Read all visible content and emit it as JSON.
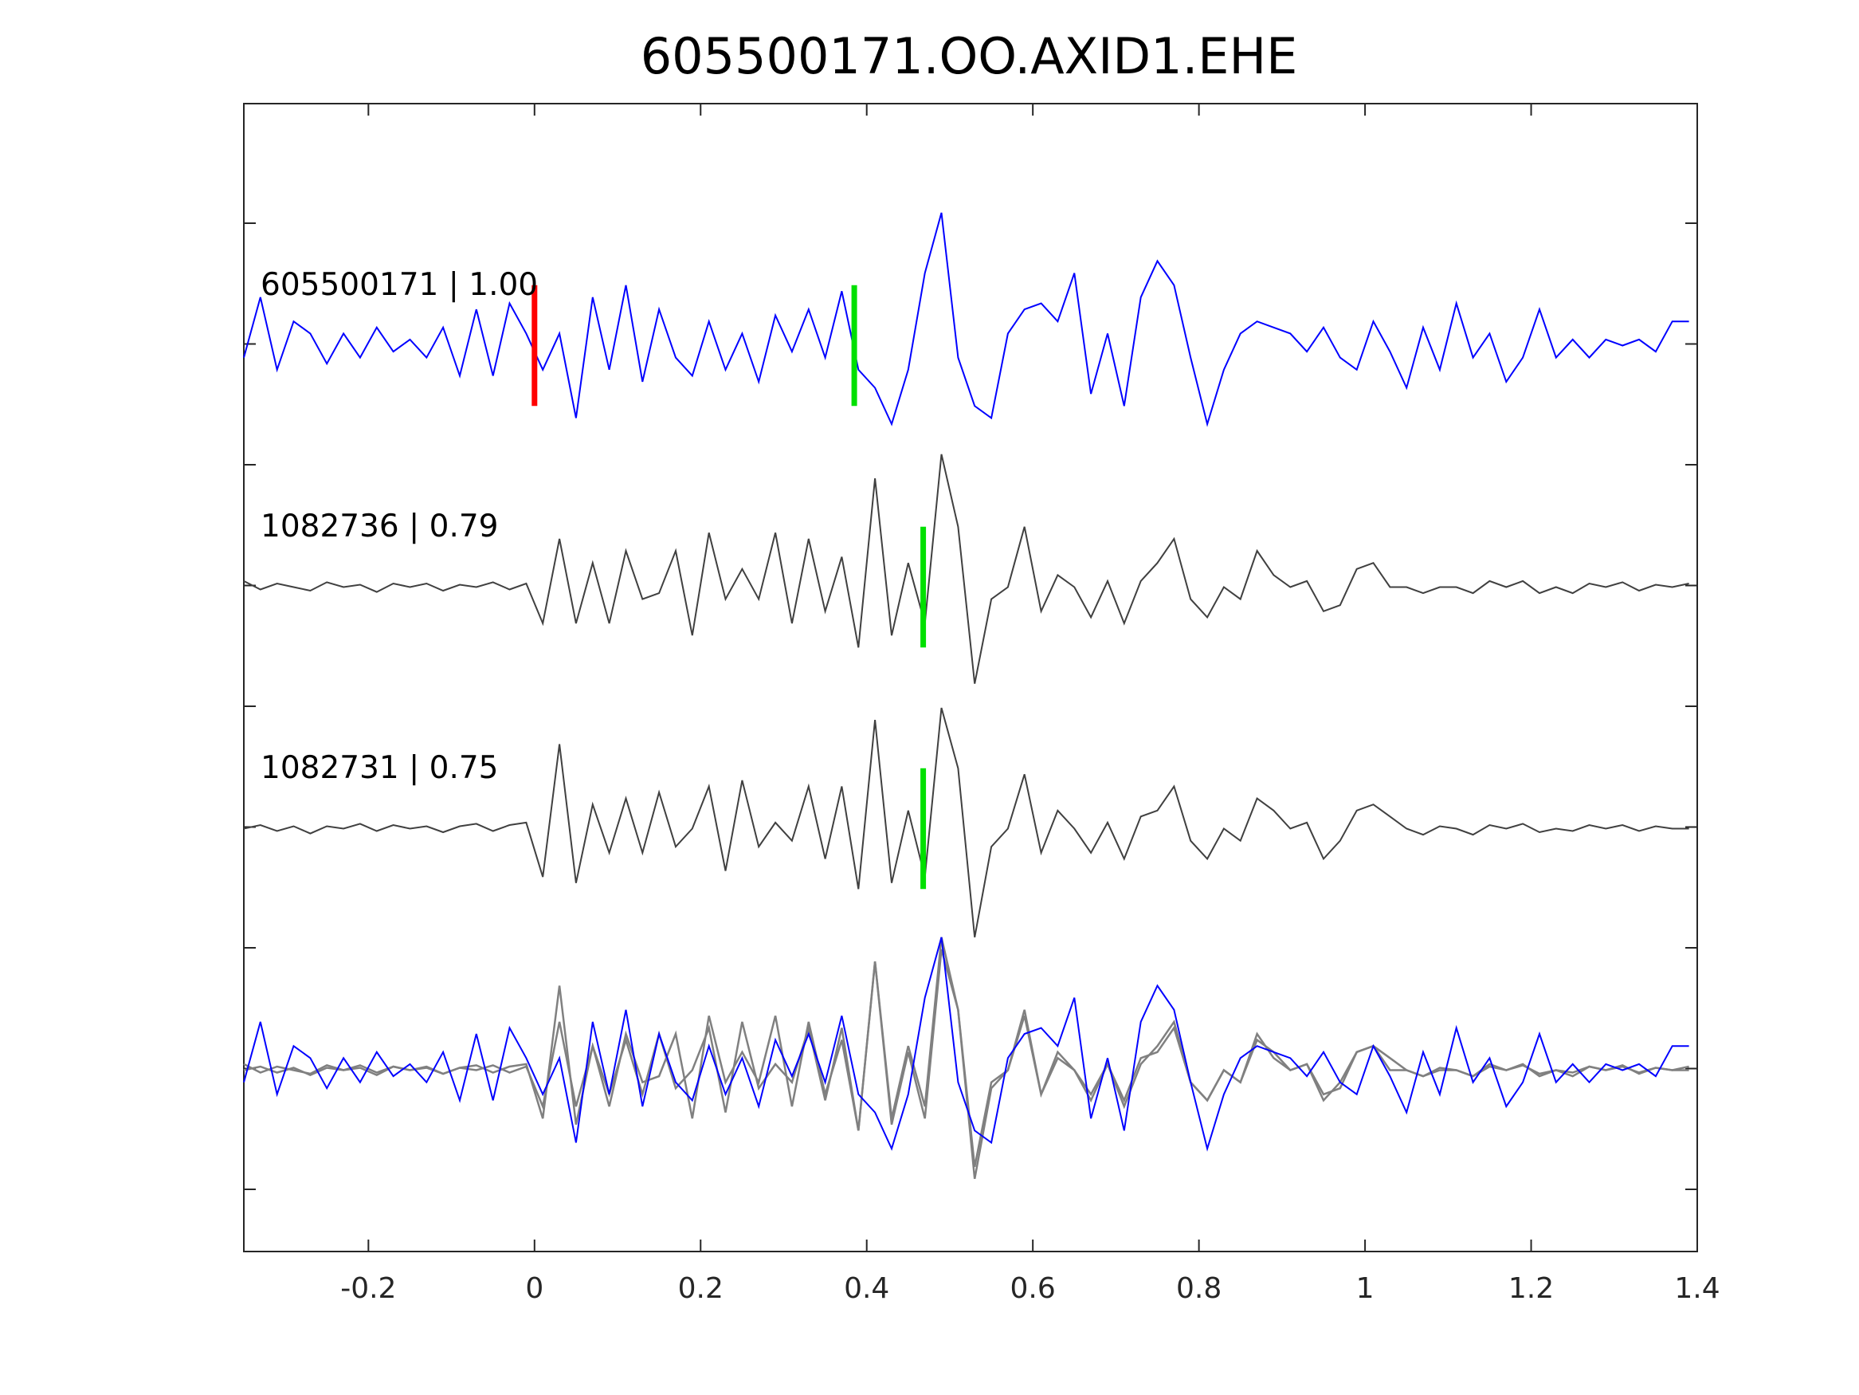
{
  "chart_data": {
    "type": "line",
    "title": "605500171.OO.AXID1.EHE",
    "xlabel": "",
    "ylabel": "",
    "xlim": [
      -0.35,
      1.4
    ],
    "x_ticks": [
      "-0.2",
      "0",
      "0.2",
      "0.4",
      "0.6",
      "0.8",
      "1",
      "1.2",
      "1.4"
    ],
    "x_tick_values": [
      -0.2,
      0,
      0.2,
      0.4,
      0.6,
      0.8,
      1.0,
      1.2,
      1.4
    ],
    "y_tick_count": 9,
    "grid": false,
    "sample_start": -0.35,
    "sample_step": 0.02,
    "series": [
      {
        "name": "605500171",
        "label": "605500171 | 1.00",
        "color": "#0000ff",
        "offset_slot": 0,
        "values": [
          -0.1,
          0.4,
          -0.2,
          0.2,
          0.1,
          -0.15,
          0.1,
          -0.1,
          0.15,
          -0.05,
          0.05,
          -0.1,
          0.15,
          -0.25,
          0.3,
          -0.25,
          0.35,
          0.1,
          -0.2,
          0.1,
          -0.6,
          0.4,
          -0.2,
          0.5,
          -0.3,
          0.3,
          -0.1,
          -0.25,
          0.2,
          -0.2,
          0.1,
          -0.3,
          0.25,
          -0.05,
          0.3,
          -0.1,
          0.45,
          -0.2,
          -0.35,
          -0.65,
          -0.2,
          0.6,
          1.1,
          -0.1,
          -0.5,
          -0.6,
          0.1,
          0.3,
          0.35,
          0.2,
          0.6,
          -0.4,
          0.1,
          -0.5,
          0.4,
          0.7,
          0.5,
          -0.1,
          -0.65,
          -0.2,
          0.1,
          0.2,
          0.15,
          0.1,
          -0.05,
          0.15,
          -0.1,
          -0.2,
          0.2,
          -0.05,
          -0.35,
          0.15,
          -0.2,
          0.35,
          -0.1,
          0.1,
          -0.3,
          -0.1,
          0.3,
          -0.1,
          0.05,
          -0.1,
          0.05,
          0.0,
          0.05,
          -0.05,
          0.2,
          0.2
        ],
        "picks": [
          {
            "time": 0.0,
            "color": "#ff0000"
          },
          {
            "time": 0.385,
            "color": "#00e000"
          }
        ]
      },
      {
        "name": "1082736",
        "label": "1082736 | 0.79",
        "color": "#404040",
        "offset_slot": 1,
        "values": [
          0.05,
          -0.02,
          0.03,
          0.0,
          -0.03,
          0.04,
          0.0,
          0.02,
          -0.04,
          0.03,
          0.0,
          0.03,
          -0.03,
          0.02,
          0.0,
          0.04,
          -0.02,
          0.03,
          -0.3,
          0.4,
          -0.3,
          0.2,
          -0.3,
          0.3,
          -0.1,
          -0.05,
          0.3,
          -0.4,
          0.45,
          -0.1,
          0.15,
          -0.1,
          0.45,
          -0.3,
          0.4,
          -0.2,
          0.25,
          -0.5,
          0.9,
          -0.4,
          0.2,
          -0.3,
          1.1,
          0.5,
          -0.8,
          -0.1,
          0.0,
          0.5,
          -0.2,
          0.1,
          0.0,
          -0.25,
          0.05,
          -0.3,
          0.05,
          0.2,
          0.4,
          -0.1,
          -0.25,
          0.0,
          -0.1,
          0.3,
          0.1,
          0.0,
          0.05,
          -0.2,
          -0.15,
          0.15,
          0.2,
          0.0,
          0.0,
          -0.05,
          0.0,
          0.0,
          -0.05,
          0.05,
          0.0,
          0.05,
          -0.05,
          0.0,
          -0.05,
          0.03,
          0.0,
          0.04,
          -0.03,
          0.02,
          0.0,
          0.03
        ],
        "picks": [
          {
            "time": 0.468,
            "color": "#00e000"
          }
        ]
      },
      {
        "name": "1082731",
        "label": "1082731 | 0.75",
        "color": "#404040",
        "offset_slot": 2,
        "values": [
          0.0,
          0.03,
          -0.02,
          0.02,
          -0.04,
          0.02,
          0.0,
          0.04,
          -0.02,
          0.03,
          0.0,
          0.02,
          -0.03,
          0.02,
          0.04,
          -0.02,
          0.03,
          0.05,
          -0.4,
          0.7,
          -0.45,
          0.2,
          -0.2,
          0.25,
          -0.2,
          0.3,
          -0.15,
          0.0,
          0.35,
          -0.35,
          0.4,
          -0.15,
          0.05,
          -0.1,
          0.35,
          -0.25,
          0.35,
          -0.5,
          0.9,
          -0.45,
          0.15,
          -0.4,
          1.0,
          0.5,
          -0.9,
          -0.15,
          0.0,
          0.45,
          -0.2,
          0.15,
          0.0,
          -0.2,
          0.05,
          -0.25,
          0.1,
          0.15,
          0.35,
          -0.1,
          -0.25,
          0.0,
          -0.1,
          0.25,
          0.15,
          0.0,
          0.05,
          -0.25,
          -0.1,
          0.15,
          0.2,
          0.1,
          0.0,
          -0.05,
          0.02,
          0.0,
          -0.05,
          0.03,
          0.0,
          0.04,
          -0.03,
          0.0,
          -0.02,
          0.03,
          0.0,
          0.03,
          -0.02,
          0.02,
          0.0,
          0.0
        ],
        "picks": [
          {
            "time": 0.468,
            "color": "#00e000"
          }
        ]
      }
    ],
    "overlay": {
      "offset_slot": 3,
      "grey_color": "#808080"
    }
  }
}
